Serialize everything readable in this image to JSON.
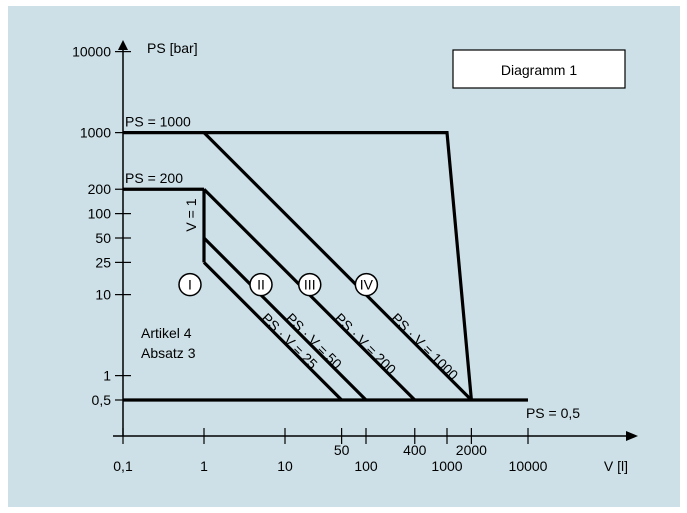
{
  "chart_data": {
    "type": "line",
    "title": "Diagramm 1",
    "xlabel": "V [l]",
    "ylabel": "PS [bar]",
    "x_scale": "log",
    "y_scale": "log",
    "x_tick_labels": [
      {
        "value": 0.1,
        "label": "0,1"
      },
      {
        "value": 1,
        "label": "1"
      },
      {
        "value": 10,
        "label": "10"
      },
      {
        "value": 100,
        "label": "100"
      },
      {
        "value": 1000,
        "label": "1000"
      },
      {
        "value": 10000,
        "label": "10000"
      }
    ],
    "x_tick_labels_upper": [
      {
        "value": 50,
        "label": "50"
      },
      {
        "value": 400,
        "label": "400"
      },
      {
        "value": 2000,
        "label": "2000"
      }
    ],
    "x_minor_ticks": [
      50,
      400,
      2000
    ],
    "y_tick_labels": [
      {
        "value": 0.5,
        "label": "0,5"
      },
      {
        "value": 1,
        "label": "1"
      },
      {
        "value": 10,
        "label": "10"
      },
      {
        "value": 25,
        "label": "25"
      },
      {
        "value": 50,
        "label": "50"
      },
      {
        "value": 100,
        "label": "100"
      },
      {
        "value": 200,
        "label": "200"
      },
      {
        "value": 1000,
        "label": "1000"
      },
      {
        "value": 10000,
        "label": "10000"
      }
    ],
    "series": [
      {
        "name": "PS = 1000",
        "points": [
          [
            1,
            1000
          ],
          [
            1000,
            1000
          ],
          [
            2000,
            0.5
          ]
        ]
      },
      {
        "name": "PS = 200",
        "points": [
          [
            1,
            200
          ],
          [
            1,
            25
          ]
        ]
      },
      {
        "name": "PS · V = 25",
        "points": [
          [
            1,
            25
          ],
          [
            50,
            0.5
          ]
        ]
      },
      {
        "name": "PS · V = 50",
        "points": [
          [
            1,
            50
          ],
          [
            100,
            0.5
          ]
        ]
      },
      {
        "name": "PS · V = 200",
        "points": [
          [
            1,
            200
          ],
          [
            400,
            0.5
          ]
        ]
      },
      {
        "name": "PS · V = 1000",
        "points": [
          [
            1,
            1000
          ],
          [
            2000,
            0.5
          ]
        ]
      },
      {
        "name": "PS = 0,5",
        "points": [
          [
            0.1,
            0.5
          ],
          [
            10000,
            0.5
          ]
        ]
      },
      {
        "name": "PS = 200 top",
        "points": [
          [
            0.1,
            200
          ],
          [
            1,
            200
          ]
        ]
      },
      {
        "name": "PS = 1000 top",
        "points": [
          [
            0.1,
            1000
          ],
          [
            1,
            1000
          ]
        ]
      }
    ],
    "annotations": [
      {
        "text": "PS = 1000",
        "x": 0.1,
        "y": 1000
      },
      {
        "text": "PS = 200",
        "x": 0.1,
        "y": 200
      },
      {
        "text": "V = 1",
        "x": 1,
        "y": 60
      },
      {
        "text": "PS = 0,5",
        "x": 2000,
        "y": 0.5
      },
      {
        "text": "Artikel 4",
        "x": 0.15,
        "y": 2
      },
      {
        "text": "Absatz 3",
        "x": 0.15,
        "y": 1.3
      }
    ],
    "category_marks": [
      {
        "text": "I",
        "x": 1,
        "y": 10
      },
      {
        "text": "II",
        "x": 10,
        "y": 10
      },
      {
        "text": "III",
        "x": 40,
        "y": 10
      },
      {
        "text": "IV",
        "x": 200,
        "y": 10
      }
    ],
    "line_labels": [
      {
        "text": "PS · V = 25"
      },
      {
        "text": "PS · V = 50"
      },
      {
        "text": "PS · V = 200"
      },
      {
        "text": "PS · V = 1000"
      }
    ],
    "grid": false,
    "legend": "none"
  }
}
